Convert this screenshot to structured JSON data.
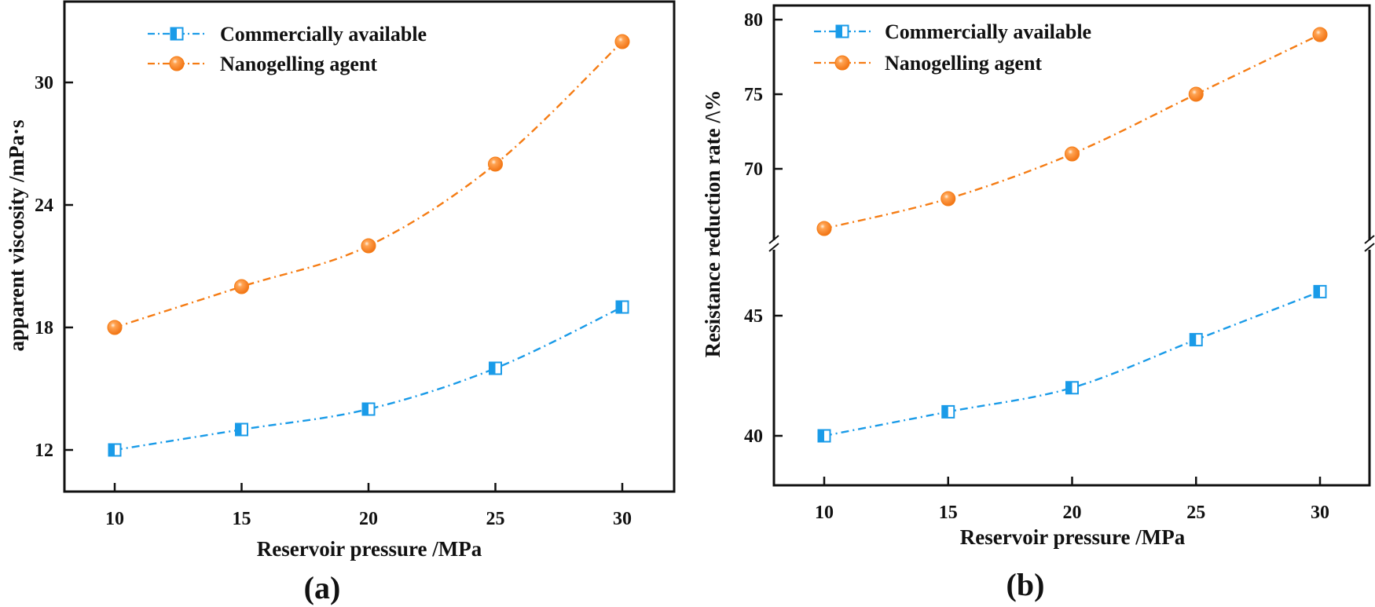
{
  "colors": {
    "commercial": "#1a9be8",
    "nano": "#f57c14",
    "axis": "#111111"
  },
  "chart_data": [
    {
      "id": "a",
      "type": "line",
      "panel_label": "(a)",
      "title": "",
      "xlabel": "Reservoir pressure /MPa",
      "ylabel": "apparent viscosity /mPa·s",
      "x": [
        10,
        15,
        20,
        25,
        30
      ],
      "x_ticks": [
        "10",
        "15",
        "20",
        "25",
        "30"
      ],
      "xlim": [
        8,
        32
      ],
      "ylim": [
        10,
        33.8
      ],
      "y_ticks": [
        "12",
        "18",
        "24",
        "30"
      ],
      "y_tick_values": [
        12,
        18,
        24,
        30
      ],
      "grid": false,
      "legend_position": "top-left",
      "series": [
        {
          "name": "Commercially available",
          "key": "commercial",
          "marker": "half-filled-square",
          "values": [
            12.0,
            13.0,
            14.0,
            16.0,
            19.0
          ]
        },
        {
          "name": "Nanogelling agent",
          "key": "nano",
          "marker": "circle",
          "values": [
            18.0,
            20.0,
            22.0,
            26.0,
            32.0
          ]
        }
      ]
    },
    {
      "id": "b",
      "type": "line",
      "panel_label": "(b)",
      "title": "",
      "xlabel": "Reservoir pressure /MPa",
      "ylabel": "Resistance reduction rate /\\%",
      "x": [
        10,
        15,
        20,
        25,
        30
      ],
      "x_ticks": [
        "10",
        "15",
        "20",
        "25",
        "30"
      ],
      "xlim": [
        8,
        32
      ],
      "broken_y_axis": true,
      "y_segments": [
        {
          "range": [
            64.8,
            81.0
          ],
          "ticks": [
            "70",
            "75",
            "80"
          ],
          "tick_values": [
            70,
            75,
            80
          ]
        },
        {
          "range": [
            38.0,
            47.8
          ],
          "ticks": [
            "40",
            "45"
          ],
          "tick_values": [
            40,
            45
          ]
        }
      ],
      "grid": false,
      "legend_position": "top-left",
      "series": [
        {
          "name": "Commercially available",
          "key": "commercial",
          "marker": "half-filled-square",
          "values": [
            40.0,
            41.0,
            42.0,
            44.0,
            46.0
          ]
        },
        {
          "name": "Nanogelling agent",
          "key": "nano",
          "marker": "circle",
          "values": [
            66.0,
            68.0,
            71.0,
            75.0,
            79.0
          ]
        }
      ]
    }
  ]
}
